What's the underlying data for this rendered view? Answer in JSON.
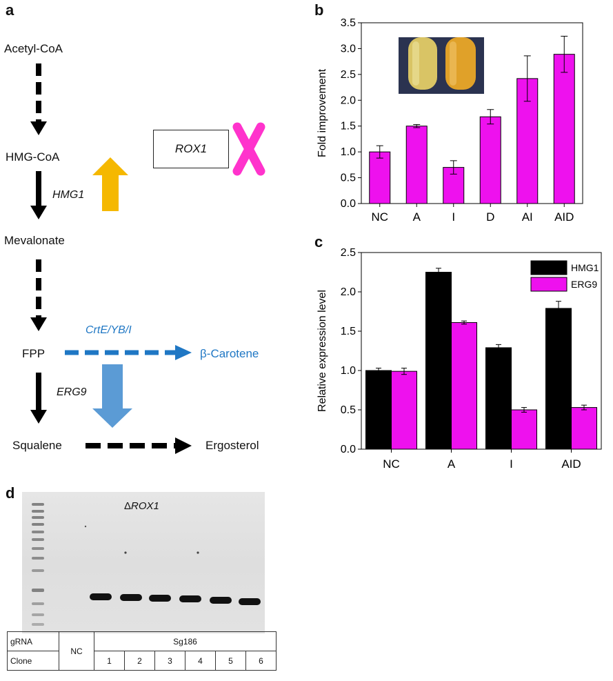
{
  "panels": {
    "a": "a",
    "b": "b",
    "c": "c",
    "d": "d"
  },
  "pathway": {
    "acetyl_coa": "Acetyl-CoA",
    "hmg_coa": "HMG-CoA",
    "hmg1": "HMG1",
    "mevalonate": "Mevalonate",
    "fpp": "FPP",
    "crt": "CrtE/YB/I",
    "carotene": "β-Carotene",
    "erg9": "ERG9",
    "squalene": "Squalene",
    "ergosterol": "Ergosterol",
    "rox1": "ROX1",
    "colors": {
      "up_arrow": "#f5b800",
      "down_arrow": "#5b9bd5",
      "cross": "#ff33cc",
      "blue_path": "#1f77c4"
    }
  },
  "gel": {
    "title_prefix": "Δ",
    "title_gene": "ROX1",
    "table": {
      "row1_label": "gRNA",
      "row2_label": "Clone",
      "nc": "NC",
      "sg": "Sg186",
      "clones": [
        "1",
        "2",
        "3",
        "4",
        "5",
        "6"
      ]
    }
  },
  "chart_data": [
    {
      "panel": "b",
      "type": "bar",
      "categories": [
        "NC",
        "A",
        "I",
        "D",
        "AI",
        "AID"
      ],
      "values": [
        1.0,
        1.5,
        0.7,
        1.68,
        2.42,
        2.89
      ],
      "errors": [
        0.12,
        0.03,
        0.13,
        0.14,
        0.44,
        0.35
      ],
      "ylabel": "Fold improvement",
      "ylim": [
        0,
        3.5
      ],
      "yticks": [
        "0.0",
        "0.5",
        "1.0",
        "1.5",
        "2.0",
        "2.5",
        "3.0",
        "3.5"
      ],
      "color": "#ee11ee"
    },
    {
      "panel": "c",
      "type": "bar",
      "categories": [
        "NC",
        "A",
        "I",
        "AID"
      ],
      "series": [
        {
          "name": "HMG1",
          "values": [
            1.0,
            2.25,
            1.29,
            1.79
          ],
          "errors": [
            0.03,
            0.05,
            0.04,
            0.09
          ],
          "color": "#000000"
        },
        {
          "name": "ERG9",
          "values": [
            0.99,
            1.61,
            0.5,
            0.53
          ],
          "errors": [
            0.04,
            0.02,
            0.03,
            0.03
          ],
          "color": "#ee11ee"
        }
      ],
      "ylabel": "Relative expression level",
      "ylim": [
        0,
        2.5
      ],
      "yticks": [
        "0.0",
        "0.5",
        "1.0",
        "1.5",
        "2.0",
        "2.5"
      ],
      "legend": "top-right"
    }
  ]
}
